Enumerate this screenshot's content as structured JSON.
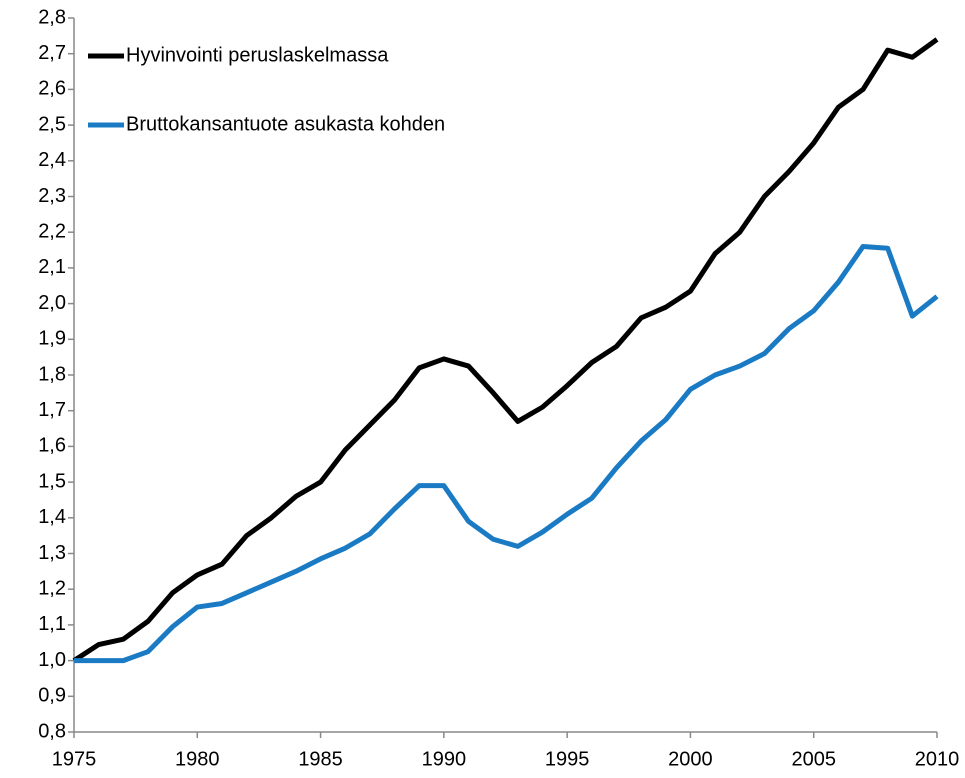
{
  "chart_data": {
    "type": "line",
    "x": [
      1975,
      1976,
      1977,
      1978,
      1979,
      1980,
      1981,
      1982,
      1983,
      1984,
      1985,
      1986,
      1987,
      1988,
      1989,
      1990,
      1991,
      1992,
      1993,
      1994,
      1995,
      1996,
      1997,
      1998,
      1999,
      2000,
      2001,
      2002,
      2003,
      2004,
      2005,
      2006,
      2007,
      2008,
      2009,
      2010
    ],
    "series": [
      {
        "name": "Hyvinvointi peruslaskelmassa",
        "color": "#000000",
        "values": [
          1.0,
          1.045,
          1.06,
          1.11,
          1.19,
          1.24,
          1.27,
          1.35,
          1.4,
          1.46,
          1.5,
          1.59,
          1.66,
          1.73,
          1.82,
          1.845,
          1.825,
          1.75,
          1.67,
          1.71,
          1.77,
          1.835,
          1.88,
          1.96,
          1.99,
          2.035,
          2.14,
          2.2,
          2.3,
          2.37,
          2.45,
          2.55,
          2.6,
          2.71,
          2.69,
          2.74
        ]
      },
      {
        "name": "Bruttokansantuote asukasta kohden",
        "color": "#1a7bc4",
        "values": [
          1.0,
          1.0,
          1.0,
          1.025,
          1.095,
          1.15,
          1.16,
          1.19,
          1.22,
          1.25,
          1.285,
          1.315,
          1.355,
          1.425,
          1.49,
          1.49,
          1.39,
          1.34,
          1.32,
          1.36,
          1.41,
          1.455,
          1.54,
          1.615,
          1.675,
          1.76,
          1.8,
          1.825,
          1.86,
          1.93,
          1.98,
          2.06,
          2.16,
          2.155,
          1.965,
          2.02
        ]
      }
    ],
    "xlim": [
      1975,
      2010
    ],
    "xticks": [
      1975,
      1980,
      1985,
      1990,
      1995,
      2000,
      2005,
      2010
    ],
    "ylim": [
      0.8,
      2.8
    ],
    "yticks": [
      {
        "value": 0.8,
        "label": "0,8"
      },
      {
        "value": 0.9,
        "label": "0,9"
      },
      {
        "value": 1.0,
        "label": "1,0"
      },
      {
        "value": 1.1,
        "label": "1,1"
      },
      {
        "value": 1.2,
        "label": "1,2"
      },
      {
        "value": 1.3,
        "label": "1,3"
      },
      {
        "value": 1.4,
        "label": "1,4"
      },
      {
        "value": 1.5,
        "label": "1,5"
      },
      {
        "value": 1.6,
        "label": "1,6"
      },
      {
        "value": 1.7,
        "label": "1,7"
      },
      {
        "value": 1.8,
        "label": "1,8"
      },
      {
        "value": 1.9,
        "label": "1,9"
      },
      {
        "value": 2.0,
        "label": "2,0"
      },
      {
        "value": 2.1,
        "label": "2,1"
      },
      {
        "value": 2.2,
        "label": "2,2"
      },
      {
        "value": 2.3,
        "label": "2,3"
      },
      {
        "value": 2.4,
        "label": "2,4"
      },
      {
        "value": 2.5,
        "label": "2,5"
      },
      {
        "value": 2.6,
        "label": "2,6"
      },
      {
        "value": 2.7,
        "label": "2,7"
      },
      {
        "value": 2.8,
        "label": "2,8"
      }
    ],
    "grid": false,
    "legend": "upper left"
  }
}
